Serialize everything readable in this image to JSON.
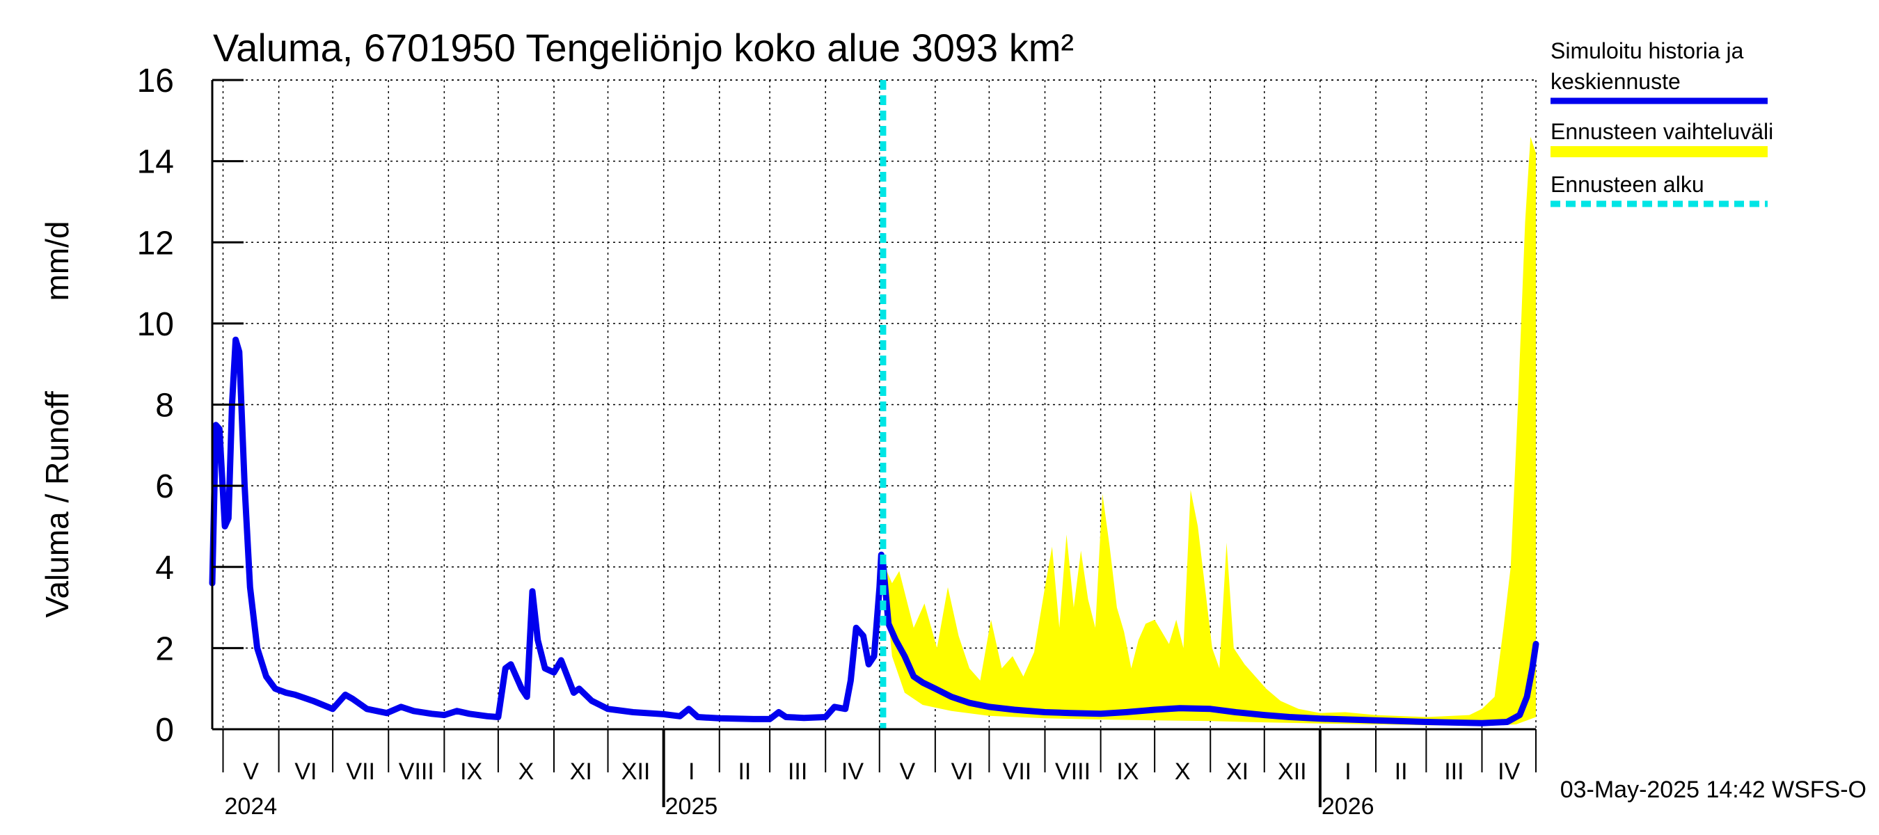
{
  "chart_data": {
    "type": "line",
    "title": "Valuma, 6701950 Tengeliönjo koko alue 3093 km²",
    "ylabel_left": "Valuma / Runoff",
    "ylabel_right": "mm/d",
    "ylim": [
      0,
      16
    ],
    "yticks": [
      0,
      2,
      4,
      6,
      8,
      10,
      12,
      14,
      16
    ],
    "xlim": [
      "2024-04-25",
      "2026-05-01"
    ],
    "grid": true,
    "forecast_start": "2025-05-03",
    "month_labels": [
      "V",
      "VI",
      "VII",
      "VIII",
      "IX",
      "X",
      "XI",
      "XII",
      "I",
      "II",
      "III",
      "IV",
      "V",
      "VI",
      "VII",
      "VIII",
      "IX",
      "X",
      "XI",
      "XII",
      "I",
      "II",
      "III",
      "IV"
    ],
    "month_starts": [
      "2024-05-01",
      "2024-06-01",
      "2024-07-01",
      "2024-08-01",
      "2024-09-01",
      "2024-10-01",
      "2024-11-01",
      "2024-12-01",
      "2025-01-01",
      "2025-02-01",
      "2025-03-01",
      "2025-04-01",
      "2025-05-01",
      "2025-06-01",
      "2025-07-01",
      "2025-08-01",
      "2025-09-01",
      "2025-10-01",
      "2025-11-01",
      "2025-12-01",
      "2026-01-01",
      "2026-02-01",
      "2026-03-01",
      "2026-04-01",
      "2026-05-01"
    ],
    "year_labels": [
      {
        "label": "2024",
        "date": "2024-05-01"
      },
      {
        "label": "2025",
        "date": "2025-01-01"
      },
      {
        "label": "2026",
        "date": "2026-01-01"
      }
    ],
    "legend": {
      "placement": "right",
      "entries": [
        {
          "name_line1": "Simuloitu historia ja",
          "name_line2": "keskiennuste",
          "color": "#0000ee",
          "style": "solid"
        },
        {
          "name_line1": "Ennusteen vaihteluväli",
          "name_line2": "",
          "color": "#ffff00",
          "style": "solid"
        },
        {
          "name_line1": "Ennusteen alku",
          "name_line2": "",
          "color": "#00e5e5",
          "style": "dashed"
        }
      ]
    },
    "series": [
      {
        "key": "history",
        "color": "#0000ee",
        "points": [
          [
            "2024-04-25",
            3.6
          ],
          [
            "2024-04-27",
            7.5
          ],
          [
            "2024-04-29",
            7.4
          ],
          [
            "2024-05-02",
            5.0
          ],
          [
            "2024-05-04",
            5.2
          ],
          [
            "2024-05-06",
            8.0
          ],
          [
            "2024-05-08",
            9.6
          ],
          [
            "2024-05-10",
            9.3
          ],
          [
            "2024-05-13",
            6.0
          ],
          [
            "2024-05-16",
            3.5
          ],
          [
            "2024-05-20",
            2.0
          ],
          [
            "2024-05-25",
            1.3
          ],
          [
            "2024-05-30",
            1.0
          ],
          [
            "2024-06-05",
            0.9
          ],
          [
            "2024-06-10",
            0.85
          ],
          [
            "2024-06-20",
            0.7
          ],
          [
            "2024-07-01",
            0.5
          ],
          [
            "2024-07-08",
            0.85
          ],
          [
            "2024-07-12",
            0.75
          ],
          [
            "2024-07-20",
            0.5
          ],
          [
            "2024-07-31",
            0.4
          ],
          [
            "2024-08-08",
            0.55
          ],
          [
            "2024-08-15",
            0.45
          ],
          [
            "2024-08-25",
            0.38
          ],
          [
            "2024-09-01",
            0.35
          ],
          [
            "2024-09-08",
            0.45
          ],
          [
            "2024-09-15",
            0.38
          ],
          [
            "2024-09-25",
            0.32
          ],
          [
            "2024-10-01",
            0.3
          ],
          [
            "2024-10-05",
            1.5
          ],
          [
            "2024-10-08",
            1.6
          ],
          [
            "2024-10-14",
            1.0
          ],
          [
            "2024-10-17",
            0.8
          ],
          [
            "2024-10-20",
            3.4
          ],
          [
            "2024-10-23",
            2.2
          ],
          [
            "2024-10-27",
            1.5
          ],
          [
            "2024-11-01",
            1.4
          ],
          [
            "2024-11-05",
            1.7
          ],
          [
            "2024-11-12",
            0.9
          ],
          [
            "2024-11-15",
            1.0
          ],
          [
            "2024-11-22",
            0.7
          ],
          [
            "2024-12-01",
            0.5
          ],
          [
            "2024-12-15",
            0.42
          ],
          [
            "2025-01-01",
            0.37
          ],
          [
            "2025-01-10",
            0.32
          ],
          [
            "2025-01-15",
            0.5
          ],
          [
            "2025-01-20",
            0.3
          ],
          [
            "2025-02-01",
            0.27
          ],
          [
            "2025-02-20",
            0.25
          ],
          [
            "2025-03-01",
            0.25
          ],
          [
            "2025-03-06",
            0.42
          ],
          [
            "2025-03-10",
            0.3
          ],
          [
            "2025-03-20",
            0.28
          ],
          [
            "2025-04-01",
            0.3
          ],
          [
            "2025-04-06",
            0.55
          ],
          [
            "2025-04-12",
            0.5
          ],
          [
            "2025-04-15",
            1.2
          ],
          [
            "2025-04-18",
            2.5
          ],
          [
            "2025-04-22",
            2.3
          ],
          [
            "2025-04-25",
            1.6
          ],
          [
            "2025-04-28",
            1.8
          ],
          [
            "2025-05-01",
            3.5
          ],
          [
            "2025-05-02",
            4.3
          ],
          [
            "2025-05-03",
            4.1
          ]
        ]
      },
      {
        "key": "forecast_mean",
        "color": "#0000ee",
        "points": [
          [
            "2025-05-03",
            4.1
          ],
          [
            "2025-05-06",
            2.6
          ],
          [
            "2025-05-10",
            2.2
          ],
          [
            "2025-05-15",
            1.8
          ],
          [
            "2025-05-20",
            1.3
          ],
          [
            "2025-05-25",
            1.15
          ],
          [
            "2025-06-01",
            1.0
          ],
          [
            "2025-06-10",
            0.8
          ],
          [
            "2025-06-20",
            0.65
          ],
          [
            "2025-07-01",
            0.55
          ],
          [
            "2025-07-15",
            0.48
          ],
          [
            "2025-08-01",
            0.42
          ],
          [
            "2025-08-15",
            0.4
          ],
          [
            "2025-09-01",
            0.38
          ],
          [
            "2025-09-15",
            0.42
          ],
          [
            "2025-10-01",
            0.48
          ],
          [
            "2025-10-15",
            0.52
          ],
          [
            "2025-11-01",
            0.5
          ],
          [
            "2025-11-15",
            0.42
          ],
          [
            "2025-12-01",
            0.35
          ],
          [
            "2025-12-15",
            0.3
          ],
          [
            "2026-01-01",
            0.26
          ],
          [
            "2026-02-01",
            0.22
          ],
          [
            "2026-03-01",
            0.18
          ],
          [
            "2026-04-01",
            0.15
          ],
          [
            "2026-04-15",
            0.18
          ],
          [
            "2026-04-22",
            0.35
          ],
          [
            "2026-04-26",
            0.8
          ],
          [
            "2026-04-29",
            1.5
          ],
          [
            "2026-05-01",
            2.1
          ]
        ]
      },
      {
        "key": "forecast_range",
        "color": "#ffff00",
        "upper": [
          [
            "2025-05-03",
            4.1
          ],
          [
            "2025-05-08",
            3.6
          ],
          [
            "2025-05-12",
            3.9
          ],
          [
            "2025-05-16",
            3.2
          ],
          [
            "2025-05-20",
            2.5
          ],
          [
            "2025-05-26",
            3.1
          ],
          [
            "2025-06-02",
            2.0
          ],
          [
            "2025-06-08",
            3.5
          ],
          [
            "2025-06-14",
            2.3
          ],
          [
            "2025-06-20",
            1.5
          ],
          [
            "2025-06-26",
            1.2
          ],
          [
            "2025-07-02",
            2.7
          ],
          [
            "2025-07-08",
            1.5
          ],
          [
            "2025-07-14",
            1.8
          ],
          [
            "2025-07-20",
            1.3
          ],
          [
            "2025-07-26",
            1.9
          ],
          [
            "2025-08-01",
            3.5
          ],
          [
            "2025-08-05",
            4.5
          ],
          [
            "2025-08-09",
            2.5
          ],
          [
            "2025-08-13",
            4.8
          ],
          [
            "2025-08-17",
            3.0
          ],
          [
            "2025-08-21",
            4.4
          ],
          [
            "2025-08-25",
            3.2
          ],
          [
            "2025-08-29",
            2.5
          ],
          [
            "2025-09-02",
            5.8
          ],
          [
            "2025-09-06",
            4.5
          ],
          [
            "2025-09-10",
            3.0
          ],
          [
            "2025-09-14",
            2.4
          ],
          [
            "2025-09-18",
            1.5
          ],
          [
            "2025-09-22",
            2.2
          ],
          [
            "2025-09-26",
            2.6
          ],
          [
            "2025-10-01",
            2.7
          ],
          [
            "2025-10-05",
            2.4
          ],
          [
            "2025-10-09",
            2.1
          ],
          [
            "2025-10-13",
            2.7
          ],
          [
            "2025-10-17",
            2.0
          ],
          [
            "2025-10-21",
            5.9
          ],
          [
            "2025-10-25",
            5.0
          ],
          [
            "2025-10-29",
            3.5
          ],
          [
            "2025-11-02",
            2.0
          ],
          [
            "2025-11-06",
            1.5
          ],
          [
            "2025-11-10",
            4.6
          ],
          [
            "2025-11-14",
            2.0
          ],
          [
            "2025-11-20",
            1.6
          ],
          [
            "2025-11-26",
            1.3
          ],
          [
            "2025-12-02",
            1.0
          ],
          [
            "2025-12-10",
            0.7
          ],
          [
            "2025-12-20",
            0.5
          ],
          [
            "2026-01-01",
            0.4
          ],
          [
            "2026-01-15",
            0.42
          ],
          [
            "2026-02-01",
            0.35
          ],
          [
            "2026-03-01",
            0.3
          ],
          [
            "2026-03-25",
            0.35
          ],
          [
            "2026-04-01",
            0.5
          ],
          [
            "2026-04-08",
            0.8
          ],
          [
            "2026-04-13",
            2.5
          ],
          [
            "2026-04-17",
            4.0
          ],
          [
            "2026-04-21",
            8.0
          ],
          [
            "2026-04-25",
            12.5
          ],
          [
            "2026-04-28",
            14.6
          ],
          [
            "2026-05-01",
            14.2
          ]
        ],
        "lower": [
          [
            "2025-05-03",
            4.1
          ],
          [
            "2025-05-08",
            1.8
          ],
          [
            "2025-05-15",
            0.9
          ],
          [
            "2025-05-25",
            0.6
          ],
          [
            "2025-06-10",
            0.45
          ],
          [
            "2025-07-01",
            0.33
          ],
          [
            "2025-08-01",
            0.27
          ],
          [
            "2025-09-01",
            0.24
          ],
          [
            "2025-10-01",
            0.22
          ],
          [
            "2025-11-01",
            0.2
          ],
          [
            "2025-12-01",
            0.17
          ],
          [
            "2026-01-01",
            0.14
          ],
          [
            "2026-02-01",
            0.12
          ],
          [
            "2026-03-01",
            0.1
          ],
          [
            "2026-04-01",
            0.09
          ],
          [
            "2026-04-20",
            0.12
          ],
          [
            "2026-05-01",
            0.3
          ]
        ]
      }
    ]
  },
  "footer": {
    "timestamp": "03-May-2025 14:42 WSFS-O"
  }
}
